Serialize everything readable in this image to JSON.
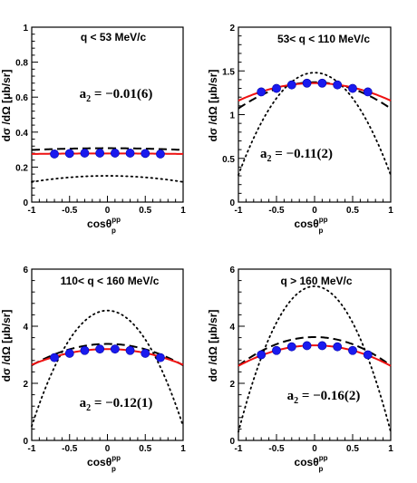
{
  "axis_text": {
    "ylabel": "dσ /dΩ [μb/sr]",
    "xlabel_base": "cosθ",
    "xlabel_sup": "pp",
    "xlabel_sub": "p"
  },
  "chart_data": [
    {
      "type": "line",
      "title": "q < 53 MeV/c",
      "annotation": {
        "base": "a",
        "sub": "2",
        "rest": " = −0.01(6)"
      },
      "xlim": [
        -1,
        1
      ],
      "ylim": [
        0,
        1
      ],
      "xticks": [
        "-1",
        "-0.5",
        "0",
        "0.5",
        "1"
      ],
      "yticks": [
        {
          "v": 0,
          "t": "0"
        },
        {
          "v": 0.2,
          "t": "0.2"
        },
        {
          "v": 0.4,
          "t": "0.4"
        },
        {
          "v": 0.6,
          "t": "0.6"
        },
        {
          "v": 0.8,
          "t": "0.8"
        },
        {
          "v": 1,
          "t": "1"
        }
      ],
      "points": {
        "x": [
          -0.7,
          -0.5,
          -0.3,
          -0.1,
          0.1,
          0.3,
          0.5,
          0.7
        ],
        "y": [
          0.275,
          0.278,
          0.28,
          0.28,
          0.28,
          0.28,
          0.278,
          0.275
        ],
        "color": "#1a1aee"
      },
      "fit": {
        "a": 0.278,
        "b": -0.003,
        "color": "#ee1111"
      },
      "dashed": {
        "a": 0.308,
        "b": -0.01
      },
      "dotted": {
        "a": 0.15,
        "b": -0.035
      }
    },
    {
      "type": "line",
      "title": "53< q < 110 MeV/c",
      "annotation": {
        "base": "a",
        "sub": "2",
        "rest": " = −0.11(2)"
      },
      "xlim": [
        -1,
        1
      ],
      "ylim": [
        0,
        2
      ],
      "xticks": [
        "-1",
        "-0.5",
        "0",
        "0.5",
        "1"
      ],
      "yticks": [
        {
          "v": 0,
          "t": "0"
        },
        {
          "v": 0.5,
          "t": "0.5"
        },
        {
          "v": 1,
          "t": "1"
        },
        {
          "v": 1.5,
          "t": "1.5"
        },
        {
          "v": 2,
          "t": "2"
        }
      ],
      "points": {
        "x": [
          -0.7,
          -0.5,
          -0.3,
          -0.1,
          0.1,
          0.3,
          0.5,
          0.7
        ],
        "y": [
          1.26,
          1.3,
          1.34,
          1.36,
          1.36,
          1.34,
          1.3,
          1.26
        ],
        "color": "#1a1aee"
      },
      "fit": {
        "a": 1.36,
        "b": -0.2,
        "color": "#ee1111"
      },
      "dashed": {
        "a": 1.37,
        "b": -0.3
      },
      "dotted": {
        "a": 1.48,
        "b": -1.17
      }
    },
    {
      "type": "line",
      "title": "110< q < 160 MeV/c",
      "annotation": {
        "base": "a",
        "sub": "2",
        "rest": " = −0.12(1)"
      },
      "xlim": [
        -1,
        1
      ],
      "ylim": [
        0,
        6
      ],
      "xticks": [
        "-1",
        "-0.5",
        "0",
        "0.5",
        "1"
      ],
      "yticks": [
        {
          "v": 0,
          "t": "0"
        },
        {
          "v": 2,
          "t": "2"
        },
        {
          "v": 4,
          "t": "4"
        },
        {
          "v": 6,
          "t": "6"
        }
      ],
      "points": {
        "x": [
          -0.7,
          -0.5,
          -0.3,
          -0.1,
          0.1,
          0.3,
          0.5,
          0.7
        ],
        "y": [
          2.9,
          3.05,
          3.15,
          3.2,
          3.2,
          3.15,
          3.05,
          2.9
        ],
        "color": "#1a1aee"
      },
      "fit": {
        "a": 3.2,
        "b": -0.55,
        "color": "#ee1111"
      },
      "dashed": {
        "a": 3.38,
        "b": -0.75
      },
      "dotted": {
        "a": 4.55,
        "b": -4.05
      }
    },
    {
      "type": "line",
      "title": "q > 160 MeV/c",
      "annotation": {
        "base": "a",
        "sub": "2",
        "rest": " = −0.16(2)"
      },
      "xlim": [
        -1,
        1
      ],
      "ylim": [
        0,
        6
      ],
      "xticks": [
        "-1",
        "-0.5",
        "0",
        "0.5",
        "1"
      ],
      "yticks": [
        {
          "v": 0,
          "t": "0"
        },
        {
          "v": 2,
          "t": "2"
        },
        {
          "v": 4,
          "t": "4"
        },
        {
          "v": 6,
          "t": "6"
        }
      ],
      "points": {
        "x": [
          -0.7,
          -0.5,
          -0.3,
          -0.1,
          0.1,
          0.3,
          0.5,
          0.7
        ],
        "y": [
          3.0,
          3.15,
          3.28,
          3.32,
          3.32,
          3.28,
          3.15,
          3.0
        ],
        "color": "#1a1aee"
      },
      "fit": {
        "a": 3.33,
        "b": -0.72,
        "color": "#ee1111"
      },
      "dashed": {
        "a": 3.62,
        "b": -1.0
      },
      "dotted": {
        "a": 5.4,
        "b": -5.1
      }
    }
  ]
}
